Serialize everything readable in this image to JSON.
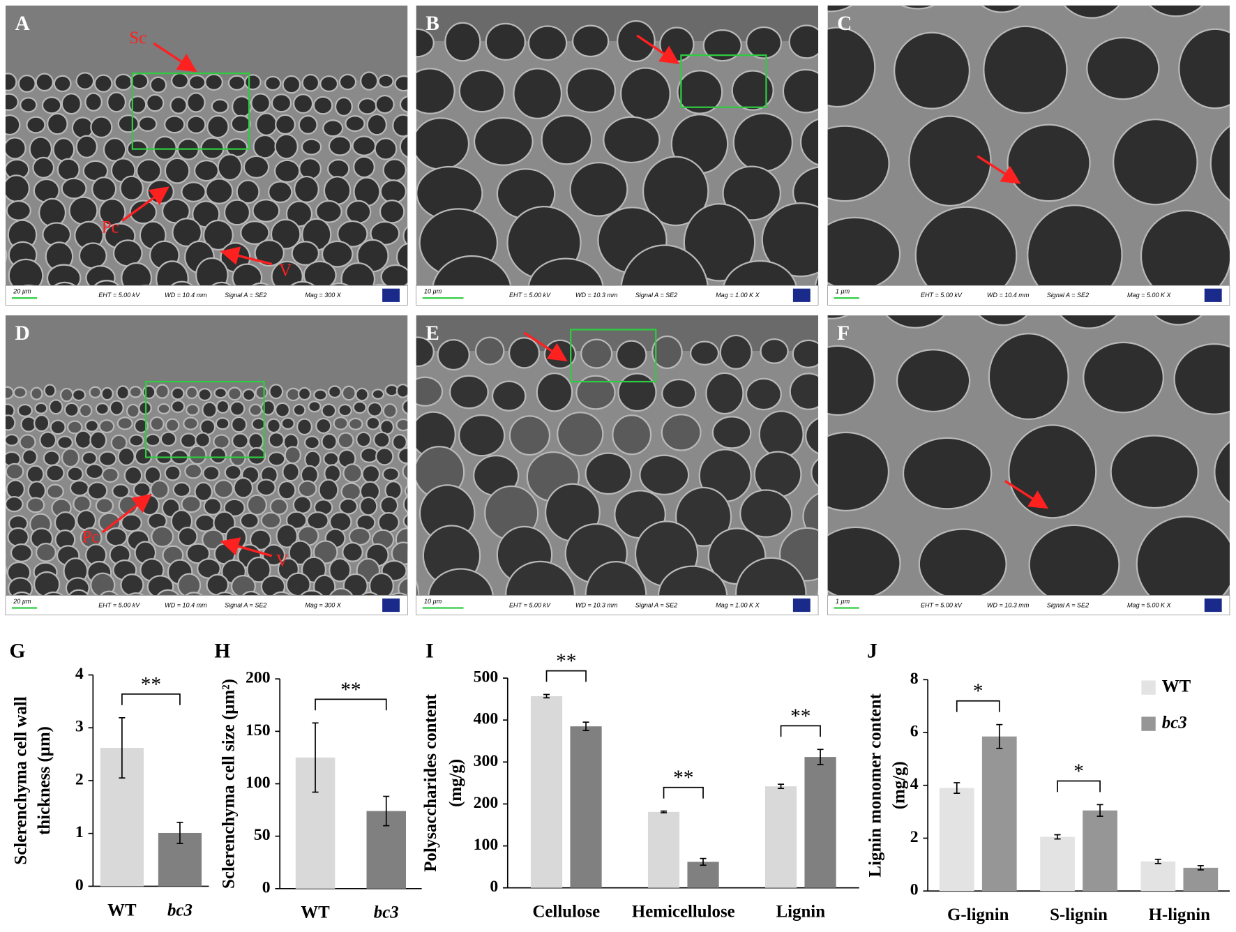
{
  "images": [
    {
      "panel": "A",
      "scale_bar": "20 µm",
      "eht": "EHT = 5.00 kV",
      "wd": "WD = 10.4 mm",
      "signal": "Signal A = SE2",
      "mag": "Mag =    300 X",
      "labels": [
        "Sc",
        "Pc",
        "V"
      ]
    },
    {
      "panel": "B",
      "scale_bar": "10 µm",
      "eht": "EHT = 5.00 kV",
      "wd": "WD = 10.3 mm",
      "signal": "Signal A = SE2",
      "mag": "Mag =    1.00 K X",
      "labels": []
    },
    {
      "panel": "C",
      "scale_bar": "1 µm",
      "eht": "EHT = 5.00 kV",
      "wd": "WD = 10.4 mm",
      "signal": "Signal A = SE2",
      "mag": "Mag =    5.00 K X",
      "labels": []
    },
    {
      "panel": "D",
      "scale_bar": "20 µm",
      "eht": "EHT = 5.00 kV",
      "wd": "WD = 10.4 mm",
      "signal": "Signal A = SE2",
      "mag": "Mag =    300 X",
      "labels": [
        "Pc",
        "V"
      ]
    },
    {
      "panel": "E",
      "scale_bar": "10 µm",
      "eht": "EHT = 5.00 kV",
      "wd": "WD = 10.3 mm",
      "signal": "Signal A = SE2",
      "mag": "Mag =    1.00 K X",
      "labels": []
    },
    {
      "panel": "F",
      "scale_bar": "1 µm",
      "eht": "EHT = 5.00 kV",
      "wd": "WD = 10.3 mm",
      "signal": "Signal A = SE2",
      "mag": "Mag =    5.00 K X",
      "labels": []
    }
  ],
  "chart_data": [
    {
      "type": "bar",
      "panel": "G",
      "ylabel": [
        "Sclerenchyma cell wall",
        "thickness (µm)"
      ],
      "categories": [
        "WT",
        "bc3"
      ],
      "italic_categories": [
        false,
        true
      ],
      "values": [
        2.62,
        1.01
      ],
      "errors": [
        0.57,
        0.2
      ],
      "colors": [
        "#d9d9d9",
        "#808080"
      ],
      "significance": "**",
      "ylim": [
        0,
        4
      ],
      "yticks": [
        0,
        1,
        2,
        3,
        4
      ]
    },
    {
      "type": "bar",
      "panel": "H",
      "ylabel": [
        "Sclerenchyma cell size (µm²)"
      ],
      "categories": [
        "WT",
        "bc3"
      ],
      "italic_categories": [
        false,
        true
      ],
      "values": [
        125,
        74
      ],
      "errors": [
        33,
        14
      ],
      "colors": [
        "#d9d9d9",
        "#808080"
      ],
      "significance": "**",
      "ylim": [
        0,
        200
      ],
      "yticks": [
        0,
        50,
        100,
        150,
        200
      ]
    },
    {
      "type": "bar",
      "panel": "I",
      "ylabel": [
        "Polysaccharides content",
        "(mg/g)"
      ],
      "categories": [
        "Cellulose",
        "Hemicellulose",
        "Lignin"
      ],
      "series": [
        {
          "name": "WT",
          "color": "#d9d9d9",
          "values": [
            457,
            181,
            242
          ],
          "errors": [
            4,
            2,
            5
          ]
        },
        {
          "name": "bc3",
          "color": "#808080",
          "values": [
            385,
            62,
            312
          ],
          "errors": [
            10,
            8,
            18
          ]
        }
      ],
      "significance": [
        "**",
        "**",
        "**"
      ],
      "ylim": [
        0,
        500
      ],
      "yticks": [
        0,
        100,
        200,
        300,
        400,
        500
      ]
    },
    {
      "type": "bar",
      "panel": "J",
      "ylabel": [
        "Lignin monomer content",
        "(mg/g)"
      ],
      "categories": [
        "G-lignin",
        "S-lignin",
        "H-lignin"
      ],
      "series": [
        {
          "name": "WT",
          "color": "#e3e3e3",
          "values": [
            3.9,
            2.05,
            1.12
          ],
          "errors": [
            0.2,
            0.08,
            0.08
          ],
          "italic": false
        },
        {
          "name": "bc3",
          "color": "#969696",
          "values": [
            5.85,
            3.05,
            0.88
          ],
          "errors": [
            0.45,
            0.22,
            0.08
          ],
          "italic": true
        }
      ],
      "significance": [
        "*",
        "*",
        null
      ],
      "legend": "upper right",
      "ylim": [
        0,
        8
      ],
      "yticks": [
        0,
        2,
        4,
        6,
        8
      ]
    }
  ]
}
